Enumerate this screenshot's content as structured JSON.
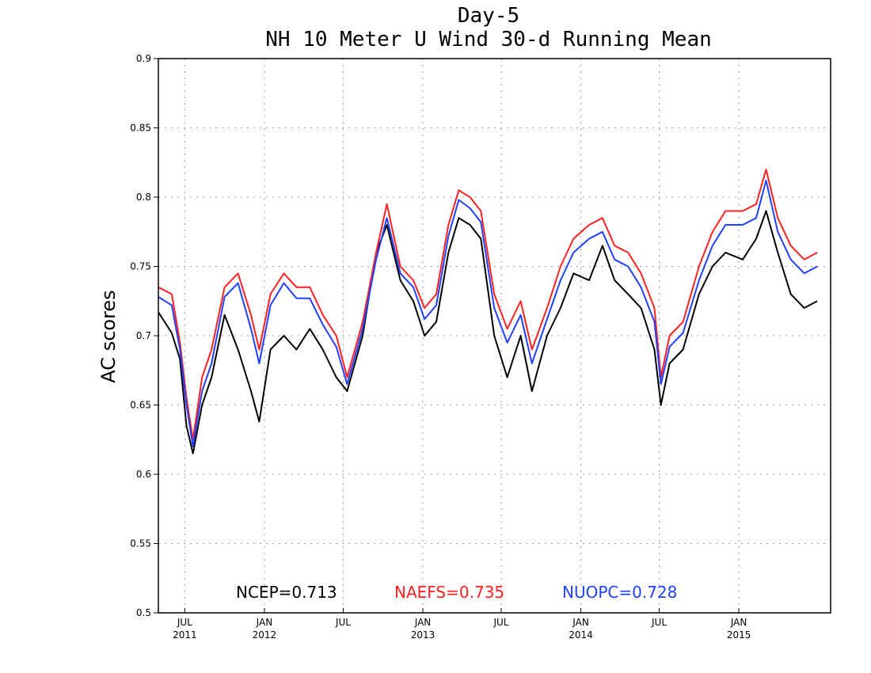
{
  "chart_data": {
    "type": "line",
    "title": "Day-5",
    "subtitle": "NH 10 Meter U Wind 30-d Running Mean",
    "xlabel": "",
    "ylabel": "AC scores",
    "ylim": [
      0.5,
      0.9
    ],
    "xlim": [
      "2011-05",
      "2015-08"
    ],
    "yticks": [
      "0.5",
      "0.55",
      "0.6",
      "0.65",
      "0.7",
      "0.75",
      "0.8",
      "0.85",
      "0.9"
    ],
    "xticks": [
      {
        "month": "JUL",
        "year": "2011",
        "date": "2011-07"
      },
      {
        "month": "JAN",
        "year": "2012",
        "date": "2012-01"
      },
      {
        "month": "JUL",
        "year": "",
        "date": "2012-07"
      },
      {
        "month": "JAN",
        "year": "2013",
        "date": "2013-01"
      },
      {
        "month": "JUL",
        "year": "",
        "date": "2013-07"
      },
      {
        "month": "JAN",
        "year": "2014",
        "date": "2014-01"
      },
      {
        "month": "JUL",
        "year": "",
        "date": "2014-07"
      },
      {
        "month": "JAN",
        "year": "2015",
        "date": "2015-01"
      }
    ],
    "grid": true,
    "legend_position": "bottom",
    "series": [
      {
        "name": "NCEP",
        "color": "#000000",
        "mean_label": "NCEP=0.713",
        "points": [
          [
            "2011-05-01",
            0.717
          ],
          [
            "2011-06-01",
            0.702
          ],
          [
            "2011-06-20",
            0.683
          ],
          [
            "2011-07-05",
            0.635
          ],
          [
            "2011-07-20",
            0.615
          ],
          [
            "2011-08-10",
            0.65
          ],
          [
            "2011-09-01",
            0.67
          ],
          [
            "2011-10-01",
            0.715
          ],
          [
            "2011-11-01",
            0.69
          ],
          [
            "2011-12-01",
            0.66
          ],
          [
            "2011-12-20",
            0.638
          ],
          [
            "2012-01-15",
            0.69
          ],
          [
            "2012-02-15",
            0.7
          ],
          [
            "2012-03-15",
            0.69
          ],
          [
            "2012-04-15",
            0.705
          ],
          [
            "2012-05-15",
            0.69
          ],
          [
            "2012-06-15",
            0.67
          ],
          [
            "2012-07-10",
            0.66
          ],
          [
            "2012-08-15",
            0.7
          ],
          [
            "2012-09-15",
            0.76
          ],
          [
            "2012-10-10",
            0.78
          ],
          [
            "2012-11-10",
            0.74
          ],
          [
            "2012-12-10",
            0.725
          ],
          [
            "2013-01-05",
            0.7
          ],
          [
            "2013-02-01",
            0.71
          ],
          [
            "2013-03-01",
            0.76
          ],
          [
            "2013-03-25",
            0.785
          ],
          [
            "2013-04-20",
            0.78
          ],
          [
            "2013-05-15",
            0.77
          ],
          [
            "2013-06-15",
            0.7
          ],
          [
            "2013-07-15",
            0.67
          ],
          [
            "2013-08-15",
            0.7
          ],
          [
            "2013-09-10",
            0.66
          ],
          [
            "2013-10-15",
            0.7
          ],
          [
            "2013-11-15",
            0.72
          ],
          [
            "2013-12-15",
            0.745
          ],
          [
            "2014-01-20",
            0.74
          ],
          [
            "2014-02-20",
            0.765
          ],
          [
            "2014-03-20",
            0.74
          ],
          [
            "2014-04-20",
            0.73
          ],
          [
            "2014-05-20",
            0.72
          ],
          [
            "2014-06-20",
            0.69
          ],
          [
            "2014-07-05",
            0.65
          ],
          [
            "2014-07-25",
            0.68
          ],
          [
            "2014-08-25",
            0.69
          ],
          [
            "2014-10-01",
            0.73
          ],
          [
            "2014-11-01",
            0.75
          ],
          [
            "2014-12-01",
            0.76
          ],
          [
            "2015-01-10",
            0.755
          ],
          [
            "2015-02-10",
            0.77
          ],
          [
            "2015-03-05",
            0.79
          ],
          [
            "2015-04-01",
            0.76
          ],
          [
            "2015-05-01",
            0.73
          ],
          [
            "2015-06-01",
            0.72
          ],
          [
            "2015-07-01",
            0.725
          ]
        ]
      },
      {
        "name": "NAEFS",
        "color": "#ff2020",
        "mean_label": "NAEFS=0.735",
        "points": [
          [
            "2011-05-01",
            0.735
          ],
          [
            "2011-06-01",
            0.73
          ],
          [
            "2011-06-20",
            0.695
          ],
          [
            "2011-07-05",
            0.655
          ],
          [
            "2011-07-20",
            0.625
          ],
          [
            "2011-08-10",
            0.67
          ],
          [
            "2011-09-01",
            0.69
          ],
          [
            "2011-10-01",
            0.735
          ],
          [
            "2011-11-01",
            0.745
          ],
          [
            "2011-12-01",
            0.715
          ],
          [
            "2011-12-20",
            0.69
          ],
          [
            "2012-01-15",
            0.73
          ],
          [
            "2012-02-15",
            0.745
          ],
          [
            "2012-03-15",
            0.735
          ],
          [
            "2012-04-15",
            0.735
          ],
          [
            "2012-05-15",
            0.715
          ],
          [
            "2012-06-15",
            0.7
          ],
          [
            "2012-07-10",
            0.67
          ],
          [
            "2012-08-15",
            0.71
          ],
          [
            "2012-09-15",
            0.76
          ],
          [
            "2012-10-10",
            0.795
          ],
          [
            "2012-11-10",
            0.75
          ],
          [
            "2012-12-10",
            0.74
          ],
          [
            "2013-01-05",
            0.72
          ],
          [
            "2013-02-01",
            0.73
          ],
          [
            "2013-03-01",
            0.78
          ],
          [
            "2013-03-25",
            0.805
          ],
          [
            "2013-04-20",
            0.8
          ],
          [
            "2013-05-15",
            0.79
          ],
          [
            "2013-06-15",
            0.73
          ],
          [
            "2013-07-15",
            0.705
          ],
          [
            "2013-08-15",
            0.725
          ],
          [
            "2013-09-10",
            0.69
          ],
          [
            "2013-10-15",
            0.72
          ],
          [
            "2013-11-15",
            0.75
          ],
          [
            "2013-12-15",
            0.77
          ],
          [
            "2014-01-20",
            0.78
          ],
          [
            "2014-02-20",
            0.785
          ],
          [
            "2014-03-20",
            0.765
          ],
          [
            "2014-04-20",
            0.76
          ],
          [
            "2014-05-20",
            0.745
          ],
          [
            "2014-06-20",
            0.72
          ],
          [
            "2014-07-05",
            0.67
          ],
          [
            "2014-07-25",
            0.7
          ],
          [
            "2014-08-25",
            0.71
          ],
          [
            "2014-10-01",
            0.75
          ],
          [
            "2014-11-01",
            0.775
          ],
          [
            "2014-12-01",
            0.79
          ],
          [
            "2015-01-10",
            0.79
          ],
          [
            "2015-02-10",
            0.795
          ],
          [
            "2015-03-05",
            0.82
          ],
          [
            "2015-04-01",
            0.785
          ],
          [
            "2015-05-01",
            0.765
          ],
          [
            "2015-06-01",
            0.755
          ],
          [
            "2015-07-01",
            0.76
          ]
        ]
      },
      {
        "name": "NUOPC",
        "color": "#2040ff",
        "mean_label": "NUOPC=0.728",
        "points": [
          [
            "2011-05-01",
            0.728
          ],
          [
            "2011-06-01",
            0.722
          ],
          [
            "2011-06-20",
            0.69
          ],
          [
            "2011-07-05",
            0.65
          ],
          [
            "2011-07-20",
            0.62
          ],
          [
            "2011-08-10",
            0.66
          ],
          [
            "2011-09-01",
            0.68
          ],
          [
            "2011-10-01",
            0.728
          ],
          [
            "2011-11-01",
            0.738
          ],
          [
            "2011-12-01",
            0.705
          ],
          [
            "2011-12-20",
            0.68
          ],
          [
            "2012-01-15",
            0.722
          ],
          [
            "2012-02-15",
            0.738
          ],
          [
            "2012-03-15",
            0.727
          ],
          [
            "2012-04-15",
            0.727
          ],
          [
            "2012-05-15",
            0.708
          ],
          [
            "2012-06-15",
            0.692
          ],
          [
            "2012-07-10",
            0.665
          ],
          [
            "2012-08-15",
            0.705
          ],
          [
            "2012-09-15",
            0.755
          ],
          [
            "2012-10-10",
            0.785
          ],
          [
            "2012-11-10",
            0.745
          ],
          [
            "2012-12-10",
            0.735
          ],
          [
            "2013-01-05",
            0.712
          ],
          [
            "2013-02-01",
            0.722
          ],
          [
            "2013-03-01",
            0.772
          ],
          [
            "2013-03-25",
            0.798
          ],
          [
            "2013-04-20",
            0.792
          ],
          [
            "2013-05-15",
            0.782
          ],
          [
            "2013-06-15",
            0.72
          ],
          [
            "2013-07-15",
            0.695
          ],
          [
            "2013-08-15",
            0.715
          ],
          [
            "2013-09-10",
            0.68
          ],
          [
            "2013-10-15",
            0.712
          ],
          [
            "2013-11-15",
            0.74
          ],
          [
            "2013-12-15",
            0.76
          ],
          [
            "2014-01-20",
            0.77
          ],
          [
            "2014-02-20",
            0.775
          ],
          [
            "2014-03-20",
            0.755
          ],
          [
            "2014-04-20",
            0.75
          ],
          [
            "2014-05-20",
            0.735
          ],
          [
            "2014-06-20",
            0.71
          ],
          [
            "2014-07-05",
            0.665
          ],
          [
            "2014-07-25",
            0.692
          ],
          [
            "2014-08-25",
            0.702
          ],
          [
            "2014-10-01",
            0.74
          ],
          [
            "2014-11-01",
            0.765
          ],
          [
            "2014-12-01",
            0.78
          ],
          [
            "2015-01-10",
            0.78
          ],
          [
            "2015-02-10",
            0.785
          ],
          [
            "2015-03-05",
            0.812
          ],
          [
            "2015-04-01",
            0.775
          ],
          [
            "2015-05-01",
            0.755
          ],
          [
            "2015-06-01",
            0.745
          ],
          [
            "2015-07-01",
            0.75
          ]
        ]
      }
    ]
  }
}
